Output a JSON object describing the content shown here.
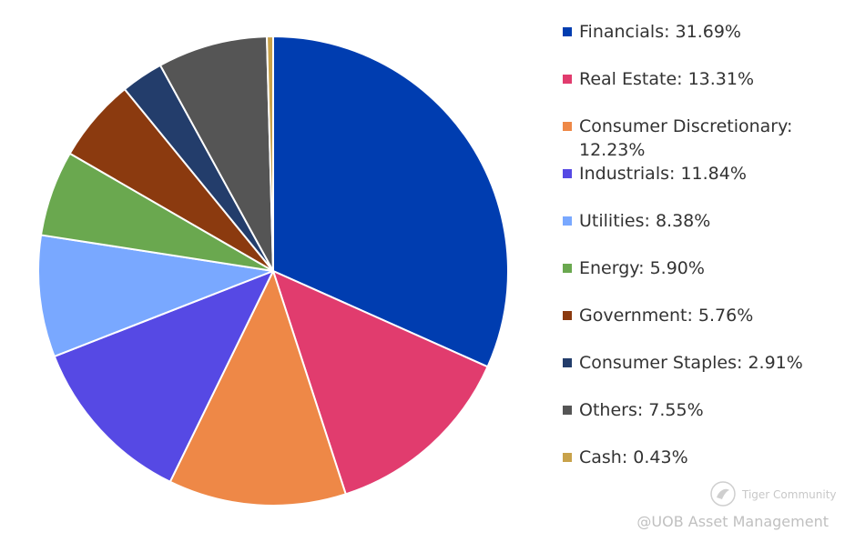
{
  "chart_data": {
    "type": "pie",
    "slices": [
      {
        "label": "Financials",
        "value": 31.69,
        "legend": "Financials: 31.69%",
        "color": "#003DB0"
      },
      {
        "label": "Real Estate",
        "value": 13.31,
        "legend": "Real Estate: 13.31%",
        "color": "#E13C6E"
      },
      {
        "label": "Consumer Discretionary",
        "value": 12.23,
        "legend": "Consumer Discretionary: 12.23%",
        "color": "#EE8847"
      },
      {
        "label": "Industrials",
        "value": 11.84,
        "legend": "Industrials: 11.84%",
        "color": "#5649E4"
      },
      {
        "label": "Utilities",
        "value": 8.38,
        "legend": "Utilities: 8.38%",
        "color": "#79A8FF"
      },
      {
        "label": "Energy",
        "value": 5.9,
        "legend": "Energy: 5.90%",
        "color": "#6AA84F"
      },
      {
        "label": "Government",
        "value": 5.76,
        "legend": "Government: 5.76%",
        "color": "#8B3A0F"
      },
      {
        "label": "Consumer Staples",
        "value": 2.91,
        "legend": "Consumer Staples: 2.91%",
        "color": "#233D6B"
      },
      {
        "label": "Others",
        "value": 7.55,
        "legend": "Others: 7.55%",
        "color": "#555555"
      },
      {
        "label": "Cash",
        "value": 0.43,
        "legend": "Cash: 0.43%",
        "color": "#C8A24A"
      }
    ],
    "legend_position": "right"
  },
  "watermark": {
    "logo_text": "Tiger Community",
    "credit": "@UOB Asset Management"
  }
}
